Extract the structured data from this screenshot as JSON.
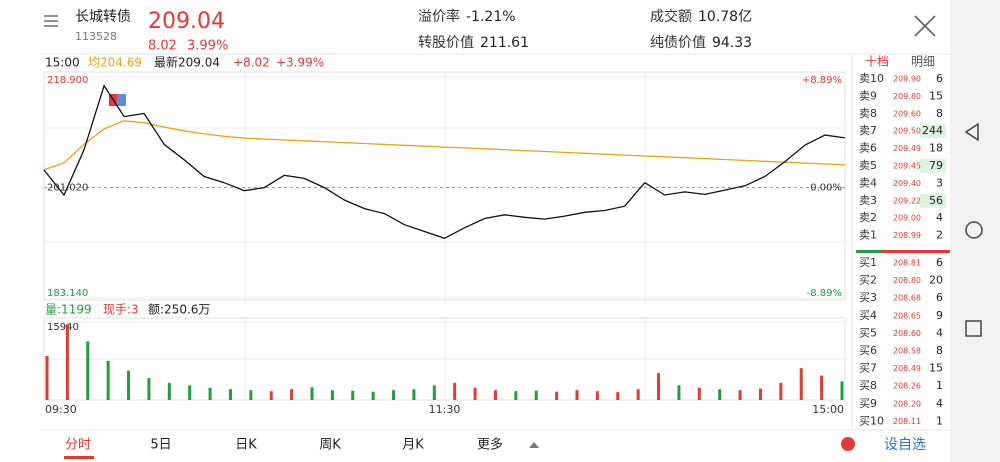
{
  "header": {
    "name": "长城转债",
    "code": "113528",
    "price": "209.04",
    "change": "8.02",
    "change_pct": "3.99%"
  },
  "stats": [
    {
      "label": "溢价率",
      "value": "-1.21%"
    },
    {
      "label": "转股价值",
      "value": "211.61"
    },
    {
      "label": "成交额",
      "value": "10.78亿"
    },
    {
      "label": "纯债价值",
      "value": "94.33"
    }
  ],
  "chart_data": {
    "type": "line",
    "time": "15:00",
    "avg_label": "均204.69",
    "latest_label": "最新209.04",
    "change": "+8.02",
    "change_pct": "+3.99%",
    "x_labels": [
      "09:30",
      "11:30",
      "15:00"
    ],
    "ylim": [
      183.14,
      218.9
    ],
    "yticks": [
      {
        "value": 183.14,
        "label": "183.140"
      },
      {
        "value": 201.02,
        "label": "201.020"
      },
      {
        "value": 218.9,
        "label": "218.900"
      }
    ],
    "pct_ticks": [
      "-8.89%",
      "0.00%",
      "+8.89%"
    ],
    "price": {
      "color": "#111111",
      "values": [
        203.85,
        199.8,
        207.1,
        217.5,
        212.5,
        213.0,
        208.0,
        205.5,
        202.8,
        201.8,
        200.5,
        201.0,
        203.0,
        202.5,
        201.0,
        199.0,
        197.6,
        196.8,
        195.0,
        193.9,
        192.8,
        194.5,
        196.0,
        196.6,
        196.2,
        195.9,
        196.4,
        197.0,
        197.3,
        198.0,
        201.8,
        199.8,
        200.3,
        199.9,
        200.6,
        201.3,
        202.8,
        205.2,
        207.9,
        209.5,
        209.04
      ]
    },
    "average": {
      "color": "#e8a317",
      "values": [
        203.9,
        205.0,
        208.0,
        210.5,
        211.8,
        211.5,
        210.8,
        210.2,
        209.7,
        209.3,
        209.0,
        208.86,
        208.71,
        208.57,
        208.43,
        208.28,
        208.14,
        207.99,
        207.85,
        207.71,
        207.56,
        207.42,
        207.28,
        207.13,
        206.99,
        206.84,
        206.7,
        206.56,
        206.41,
        206.27,
        206.12,
        205.98,
        205.84,
        205.69,
        205.55,
        205.4,
        205.26,
        205.12,
        204.97,
        204.83,
        204.69
      ]
    },
    "volume": {
      "labels": [
        "量:1199",
        "现手:3",
        "额:250.6万"
      ],
      "ylim": [
        0,
        15940
      ],
      "yticks": [
        {
          "value": 15940,
          "label": "15940"
        }
      ],
      "values": [
        9000,
        15500,
        12000,
        8000,
        6000,
        4500,
        3500,
        3000,
        2500,
        2200,
        2000,
        1800,
        2200,
        2600,
        2000,
        1900,
        1700,
        2000,
        2200,
        3000,
        3500,
        2500,
        2000,
        1800,
        1900,
        1700,
        2000,
        1800,
        1600,
        2200,
        5500,
        3000,
        2500,
        2200,
        2000,
        2300,
        3500,
        6500,
        5000,
        3800
      ],
      "rising": [
        1,
        1,
        0,
        0,
        0,
        0,
        0,
        0,
        0,
        0,
        0,
        1,
        1,
        0,
        0,
        0,
        0,
        0,
        0,
        0,
        1,
        1,
        1,
        0,
        0,
        1,
        1,
        1,
        1,
        1,
        1,
        0,
        1,
        0,
        1,
        1,
        1,
        1,
        1,
        0
      ],
      "up_color": "#e53935",
      "down_color": "#1e9e3e"
    }
  },
  "order_book": {
    "tabs": [
      "十档",
      "明细"
    ],
    "asks": [
      {
        "label": "卖10",
        "price": "209.90",
        "qty": 6
      },
      {
        "label": "卖9",
        "price": "209.80",
        "qty": 15
      },
      {
        "label": "卖8",
        "price": "209.60",
        "qty": 8
      },
      {
        "label": "卖7",
        "price": "209.50",
        "qty": 244
      },
      {
        "label": "卖6",
        "price": "209.49",
        "qty": 18
      },
      {
        "label": "卖5",
        "price": "209.45",
        "qty": 79
      },
      {
        "label": "卖4",
        "price": "209.40",
        "qty": 3
      },
      {
        "label": "卖3",
        "price": "209.22",
        "qty": 56
      },
      {
        "label": "卖2",
        "price": "209.00",
        "qty": 4
      },
      {
        "label": "卖1",
        "price": "208.99",
        "qty": 2
      }
    ],
    "bids": [
      {
        "label": "买1",
        "price": "208.81",
        "qty": 6
      },
      {
        "label": "买2",
        "price": "208.80",
        "qty": 20
      },
      {
        "label": "买3",
        "price": "208.68",
        "qty": 6
      },
      {
        "label": "买4",
        "price": "208.65",
        "qty": 9
      },
      {
        "label": "买5",
        "price": "208.60",
        "qty": 4
      },
      {
        "label": "买6",
        "price": "208.58",
        "qty": 8
      },
      {
        "label": "买7",
        "price": "208.49",
        "qty": 15
      },
      {
        "label": "买8",
        "price": "208.26",
        "qty": 1
      },
      {
        "label": "买9",
        "price": "208.20",
        "qty": 4
      },
      {
        "label": "买10",
        "price": "208.11",
        "qty": 1
      }
    ]
  },
  "nav": {
    "tabs": [
      "分时",
      "5日",
      "日K",
      "周K",
      "月K",
      "更多"
    ],
    "watch": "设自选"
  }
}
